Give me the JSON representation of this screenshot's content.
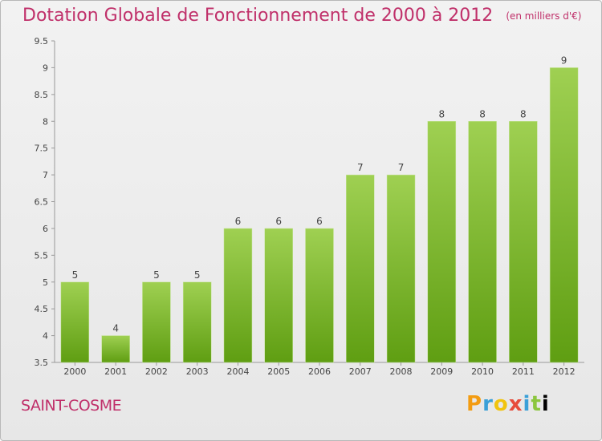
{
  "header": {
    "title": "Dotation Globale de Fonctionnement de 2000 à 2012",
    "unit": "(en milliers d'€)"
  },
  "footer": {
    "commune": "SAINT-COSME",
    "brand": "Proxiti"
  },
  "colors": {
    "title": "#c0306a",
    "bar_top": "#9fd052",
    "bar_bottom": "#5f9e12"
  },
  "chart_data": {
    "type": "bar",
    "categories": [
      "2000",
      "2001",
      "2002",
      "2003",
      "2004",
      "2005",
      "2006",
      "2007",
      "2008",
      "2009",
      "2010",
      "2011",
      "2012"
    ],
    "values": [
      5,
      4,
      5,
      5,
      6,
      6,
      6,
      7,
      7,
      8,
      8,
      8,
      9
    ],
    "data_labels": [
      "5",
      "4",
      "5",
      "5",
      "6",
      "6",
      "6",
      "7",
      "7",
      "8",
      "8",
      "8",
      "9"
    ],
    "title": "Dotation Globale de Fonctionnement de 2000 à 2012",
    "xlabel": "",
    "ylabel": "",
    "ylim": [
      3.5,
      9.5
    ],
    "yticks": [
      3.5,
      4,
      4.5,
      5,
      5.5,
      6,
      6.5,
      7,
      7.5,
      8,
      8.5,
      9,
      9.5
    ],
    "ytick_labels": [
      "3.5",
      "4",
      "4.5",
      "5",
      "5.5",
      "6",
      "6.5",
      "7",
      "7.5",
      "8",
      "8.5",
      "9",
      "9.5"
    ],
    "grid": false
  }
}
